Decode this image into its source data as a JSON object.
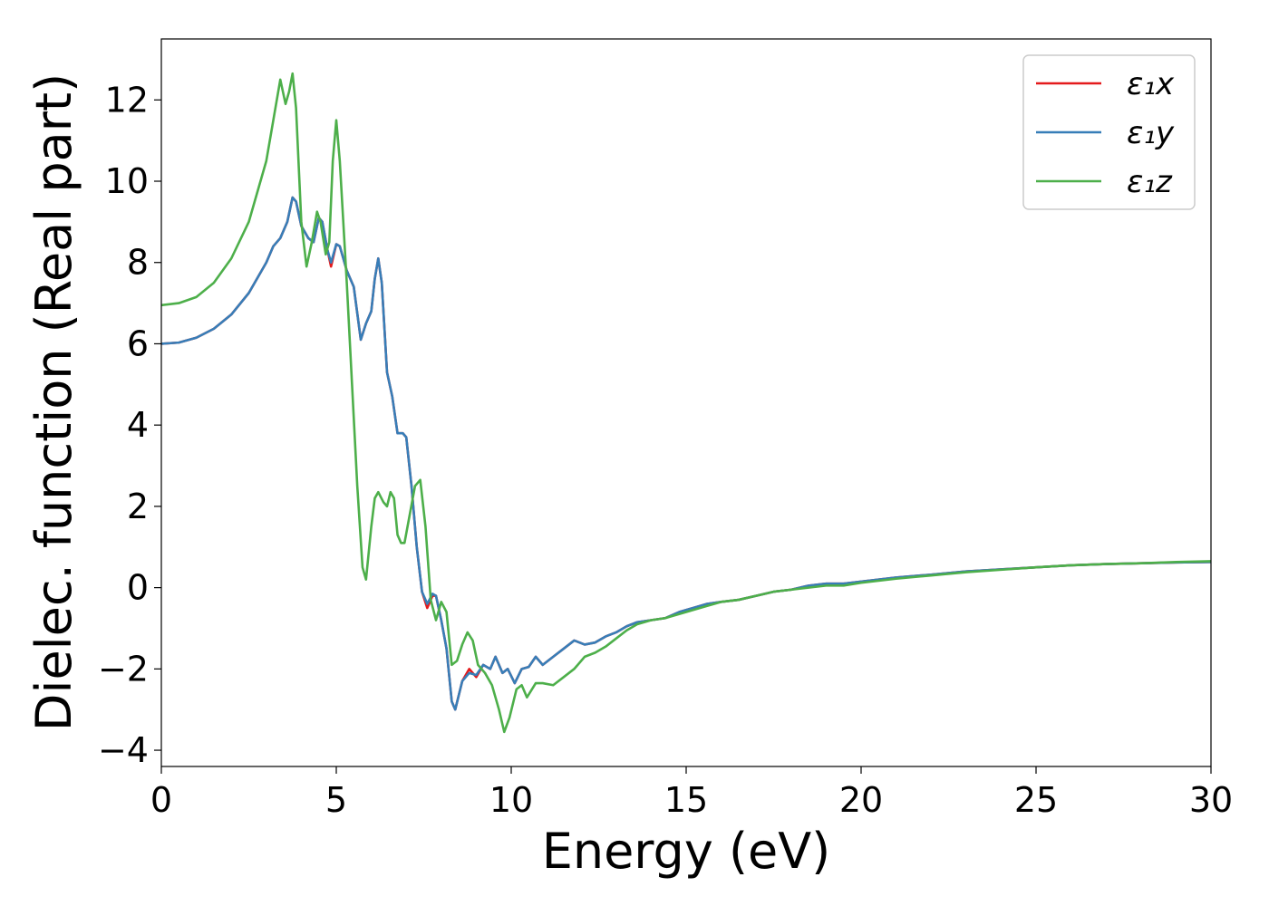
{
  "chart_data": {
    "type": "line",
    "xlabel": "Energy (eV)",
    "ylabel": "Dielec. function (Real part)",
    "xlim": [
      0,
      30
    ],
    "ylim": [
      -4.4,
      13.5
    ],
    "xticks": [
      0,
      5,
      10,
      15,
      20,
      25,
      30
    ],
    "yticks": [
      -4,
      -2,
      0,
      2,
      4,
      6,
      8,
      10,
      12
    ],
    "xtick_labels": [
      "0",
      "5",
      "10",
      "15",
      "20",
      "25",
      "30"
    ],
    "ytick_labels": [
      "−4",
      "−2",
      "0",
      "2",
      "4",
      "6",
      "8",
      "10",
      "12"
    ],
    "grid": false,
    "legend_position": "top-right",
    "series": [
      {
        "name": "ε₁x",
        "color": "#e41a1c",
        "points": [
          [
            0,
            6.0
          ],
          [
            0.5,
            6.03
          ],
          [
            1.0,
            6.15
          ],
          [
            1.5,
            6.37
          ],
          [
            2.0,
            6.72
          ],
          [
            2.5,
            7.25
          ],
          [
            3.0,
            8.0
          ],
          [
            3.2,
            8.4
          ],
          [
            3.4,
            8.6
          ],
          [
            3.6,
            9.0
          ],
          [
            3.75,
            9.6
          ],
          [
            3.85,
            9.5
          ],
          [
            4.0,
            8.9
          ],
          [
            4.2,
            8.6
          ],
          [
            4.35,
            8.5
          ],
          [
            4.5,
            9.1
          ],
          [
            4.6,
            9.0
          ],
          [
            4.75,
            8.3
          ],
          [
            4.85,
            7.9
          ],
          [
            5.0,
            8.45
          ],
          [
            5.1,
            8.4
          ],
          [
            5.3,
            7.8
          ],
          [
            5.5,
            7.4
          ],
          [
            5.7,
            6.1
          ],
          [
            5.85,
            6.5
          ],
          [
            6.0,
            6.8
          ],
          [
            6.1,
            7.6
          ],
          [
            6.2,
            8.1
          ],
          [
            6.3,
            7.5
          ],
          [
            6.45,
            5.3
          ],
          [
            6.6,
            4.7
          ],
          [
            6.75,
            3.8
          ],
          [
            6.9,
            3.8
          ],
          [
            7.0,
            3.7
          ],
          [
            7.15,
            2.5
          ],
          [
            7.3,
            1.0
          ],
          [
            7.45,
            -0.1
          ],
          [
            7.6,
            -0.5
          ],
          [
            7.75,
            -0.2
          ],
          [
            7.85,
            -0.2
          ],
          [
            8.0,
            -0.8
          ],
          [
            8.15,
            -1.5
          ],
          [
            8.3,
            -2.8
          ],
          [
            8.4,
            -3.0
          ],
          [
            8.6,
            -2.3
          ],
          [
            8.8,
            -2.0
          ],
          [
            9.0,
            -2.2
          ],
          [
            9.2,
            -1.9
          ],
          [
            9.4,
            -2.0
          ],
          [
            9.55,
            -1.7
          ],
          [
            9.75,
            -2.1
          ],
          [
            9.9,
            -2.0
          ],
          [
            10.1,
            -2.35
          ],
          [
            10.3,
            -2.0
          ],
          [
            10.5,
            -1.95
          ],
          [
            10.7,
            -1.7
          ],
          [
            10.9,
            -1.9
          ],
          [
            11.2,
            -1.7
          ],
          [
            11.5,
            -1.5
          ],
          [
            11.8,
            -1.3
          ],
          [
            12.1,
            -1.4
          ],
          [
            12.4,
            -1.35
          ],
          [
            12.7,
            -1.2
          ],
          [
            13.0,
            -1.1
          ],
          [
            13.3,
            -0.95
          ],
          [
            13.6,
            -0.85
          ],
          [
            14.0,
            -0.8
          ],
          [
            14.4,
            -0.75
          ],
          [
            14.8,
            -0.6
          ],
          [
            15.2,
            -0.5
          ],
          [
            15.6,
            -0.4
          ],
          [
            16.0,
            -0.35
          ],
          [
            16.5,
            -0.3
          ],
          [
            17.0,
            -0.2
          ],
          [
            17.5,
            -0.1
          ],
          [
            18.0,
            -0.05
          ],
          [
            18.5,
            0.05
          ],
          [
            19.0,
            0.1
          ],
          [
            19.5,
            0.1
          ],
          [
            20.0,
            0.15
          ],
          [
            21.0,
            0.25
          ],
          [
            22.0,
            0.32
          ],
          [
            23.0,
            0.4
          ],
          [
            24.0,
            0.45
          ],
          [
            25.0,
            0.5
          ],
          [
            26.0,
            0.55
          ],
          [
            27.0,
            0.58
          ],
          [
            28.0,
            0.6
          ],
          [
            29.0,
            0.62
          ],
          [
            30.0,
            0.63
          ]
        ]
      },
      {
        "name": "ε₁y",
        "color": "#377eb8",
        "points": [
          [
            0,
            6.0
          ],
          [
            0.5,
            6.03
          ],
          [
            1.0,
            6.15
          ],
          [
            1.5,
            6.37
          ],
          [
            2.0,
            6.72
          ],
          [
            2.5,
            7.25
          ],
          [
            3.0,
            8.0
          ],
          [
            3.2,
            8.4
          ],
          [
            3.4,
            8.6
          ],
          [
            3.6,
            9.0
          ],
          [
            3.75,
            9.6
          ],
          [
            3.85,
            9.5
          ],
          [
            4.0,
            8.9
          ],
          [
            4.2,
            8.6
          ],
          [
            4.35,
            8.5
          ],
          [
            4.5,
            9.1
          ],
          [
            4.6,
            9.0
          ],
          [
            4.75,
            8.3
          ],
          [
            4.85,
            8.0
          ],
          [
            5.0,
            8.45
          ],
          [
            5.1,
            8.4
          ],
          [
            5.3,
            7.8
          ],
          [
            5.5,
            7.4
          ],
          [
            5.7,
            6.1
          ],
          [
            5.85,
            6.5
          ],
          [
            6.0,
            6.8
          ],
          [
            6.1,
            7.6
          ],
          [
            6.2,
            8.1
          ],
          [
            6.3,
            7.5
          ],
          [
            6.45,
            5.3
          ],
          [
            6.6,
            4.7
          ],
          [
            6.75,
            3.8
          ],
          [
            6.9,
            3.8
          ],
          [
            7.0,
            3.7
          ],
          [
            7.15,
            2.5
          ],
          [
            7.3,
            1.0
          ],
          [
            7.45,
            -0.1
          ],
          [
            7.6,
            -0.4
          ],
          [
            7.75,
            -0.15
          ],
          [
            7.85,
            -0.2
          ],
          [
            8.0,
            -0.8
          ],
          [
            8.15,
            -1.5
          ],
          [
            8.3,
            -2.8
          ],
          [
            8.4,
            -3.0
          ],
          [
            8.6,
            -2.3
          ],
          [
            8.8,
            -2.1
          ],
          [
            9.0,
            -2.15
          ],
          [
            9.2,
            -1.9
          ],
          [
            9.4,
            -2.0
          ],
          [
            9.55,
            -1.7
          ],
          [
            9.75,
            -2.1
          ],
          [
            9.9,
            -2.0
          ],
          [
            10.1,
            -2.35
          ],
          [
            10.3,
            -2.0
          ],
          [
            10.5,
            -1.95
          ],
          [
            10.7,
            -1.7
          ],
          [
            10.9,
            -1.9
          ],
          [
            11.2,
            -1.7
          ],
          [
            11.5,
            -1.5
          ],
          [
            11.8,
            -1.3
          ],
          [
            12.1,
            -1.4
          ],
          [
            12.4,
            -1.35
          ],
          [
            12.7,
            -1.2
          ],
          [
            13.0,
            -1.1
          ],
          [
            13.3,
            -0.95
          ],
          [
            13.6,
            -0.85
          ],
          [
            14.0,
            -0.8
          ],
          [
            14.4,
            -0.75
          ],
          [
            14.8,
            -0.6
          ],
          [
            15.2,
            -0.5
          ],
          [
            15.6,
            -0.4
          ],
          [
            16.0,
            -0.35
          ],
          [
            16.5,
            -0.3
          ],
          [
            17.0,
            -0.2
          ],
          [
            17.5,
            -0.1
          ],
          [
            18.0,
            -0.05
          ],
          [
            18.5,
            0.05
          ],
          [
            19.0,
            0.1
          ],
          [
            19.5,
            0.1
          ],
          [
            20.0,
            0.15
          ],
          [
            21.0,
            0.25
          ],
          [
            22.0,
            0.32
          ],
          [
            23.0,
            0.4
          ],
          [
            24.0,
            0.45
          ],
          [
            25.0,
            0.5
          ],
          [
            26.0,
            0.55
          ],
          [
            27.0,
            0.58
          ],
          [
            28.0,
            0.6
          ],
          [
            29.0,
            0.62
          ],
          [
            30.0,
            0.63
          ]
        ]
      },
      {
        "name": "ε₁z",
        "color": "#4daf4a",
        "points": [
          [
            0,
            6.95
          ],
          [
            0.5,
            7.0
          ],
          [
            1.0,
            7.15
          ],
          [
            1.5,
            7.5
          ],
          [
            2.0,
            8.1
          ],
          [
            2.5,
            9.0
          ],
          [
            3.0,
            10.5
          ],
          [
            3.2,
            11.5
          ],
          [
            3.4,
            12.5
          ],
          [
            3.55,
            11.9
          ],
          [
            3.65,
            12.2
          ],
          [
            3.75,
            12.65
          ],
          [
            3.85,
            11.8
          ],
          [
            4.0,
            9.0
          ],
          [
            4.15,
            7.9
          ],
          [
            4.3,
            8.5
          ],
          [
            4.45,
            9.25
          ],
          [
            4.55,
            9.0
          ],
          [
            4.7,
            8.2
          ],
          [
            4.8,
            8.5
          ],
          [
            4.9,
            10.5
          ],
          [
            5.0,
            11.5
          ],
          [
            5.1,
            10.5
          ],
          [
            5.3,
            7.5
          ],
          [
            5.45,
            5.0
          ],
          [
            5.6,
            2.5
          ],
          [
            5.75,
            0.5
          ],
          [
            5.85,
            0.2
          ],
          [
            6.0,
            1.5
          ],
          [
            6.1,
            2.2
          ],
          [
            6.2,
            2.35
          ],
          [
            6.35,
            2.1
          ],
          [
            6.45,
            2.0
          ],
          [
            6.55,
            2.35
          ],
          [
            6.65,
            2.2
          ],
          [
            6.75,
            1.3
          ],
          [
            6.85,
            1.1
          ],
          [
            6.95,
            1.1
          ],
          [
            7.1,
            1.8
          ],
          [
            7.25,
            2.5
          ],
          [
            7.4,
            2.65
          ],
          [
            7.55,
            1.5
          ],
          [
            7.7,
            -0.3
          ],
          [
            7.85,
            -0.8
          ],
          [
            8.0,
            -0.35
          ],
          [
            8.15,
            -0.6
          ],
          [
            8.3,
            -1.9
          ],
          [
            8.45,
            -1.8
          ],
          [
            8.6,
            -1.4
          ],
          [
            8.75,
            -1.1
          ],
          [
            8.9,
            -1.3
          ],
          [
            9.05,
            -1.9
          ],
          [
            9.25,
            -2.1
          ],
          [
            9.45,
            -2.4
          ],
          [
            9.65,
            -3.0
          ],
          [
            9.8,
            -3.55
          ],
          [
            9.95,
            -3.2
          ],
          [
            10.15,
            -2.5
          ],
          [
            10.3,
            -2.4
          ],
          [
            10.45,
            -2.7
          ],
          [
            10.7,
            -2.35
          ],
          [
            10.9,
            -2.35
          ],
          [
            11.2,
            -2.4
          ],
          [
            11.5,
            -2.2
          ],
          [
            11.8,
            -2.0
          ],
          [
            12.1,
            -1.7
          ],
          [
            12.4,
            -1.6
          ],
          [
            12.7,
            -1.45
          ],
          [
            13.0,
            -1.25
          ],
          [
            13.3,
            -1.05
          ],
          [
            13.6,
            -0.9
          ],
          [
            14.0,
            -0.8
          ],
          [
            14.4,
            -0.75
          ],
          [
            14.8,
            -0.65
          ],
          [
            15.2,
            -0.55
          ],
          [
            15.6,
            -0.45
          ],
          [
            16.0,
            -0.35
          ],
          [
            16.5,
            -0.3
          ],
          [
            17.0,
            -0.2
          ],
          [
            17.5,
            -0.1
          ],
          [
            18.0,
            -0.05
          ],
          [
            18.5,
            0.0
          ],
          [
            19.0,
            0.05
          ],
          [
            19.5,
            0.05
          ],
          [
            20.0,
            0.12
          ],
          [
            21.0,
            0.22
          ],
          [
            22.0,
            0.3
          ],
          [
            23.0,
            0.38
          ],
          [
            24.0,
            0.44
          ],
          [
            25.0,
            0.5
          ],
          [
            26.0,
            0.55
          ],
          [
            27.0,
            0.58
          ],
          [
            28.0,
            0.6
          ],
          [
            29.0,
            0.63
          ],
          [
            30.0,
            0.65
          ]
        ]
      }
    ]
  }
}
